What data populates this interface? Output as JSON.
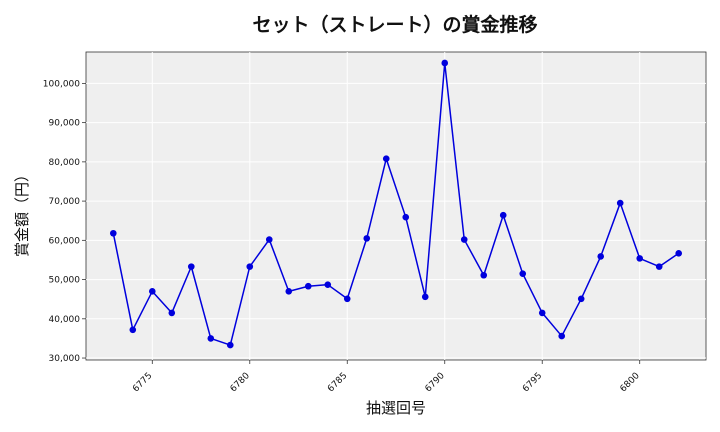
{
  "chart_data": {
    "type": "line",
    "title": "セット（ストレート）の賞金推移",
    "xlabel": "抽選回号",
    "ylabel": "賞金額（円）",
    "xlim": [
      6771.6,
      6803.4
    ],
    "ylim": [
      29500,
      108000
    ],
    "xticks": [
      6775,
      6780,
      6785,
      6790,
      6795,
      6800
    ],
    "xtick_labels": [
      "6775",
      "6780",
      "6785",
      "6790",
      "6795",
      "6800"
    ],
    "yticks": [
      30000,
      40000,
      50000,
      60000,
      70000,
      80000,
      90000,
      100000
    ],
    "ytick_labels": [
      "30,000",
      "40,000",
      "50,000",
      "60,000",
      "70,000",
      "80,000",
      "90,000",
      "100,000"
    ],
    "grid": true,
    "series": [
      {
        "color": "#0000dd",
        "marker": "circle",
        "x": [
          6773,
          6774,
          6775,
          6776,
          6777,
          6778,
          6779,
          6780,
          6781,
          6782,
          6783,
          6784,
          6785,
          6786,
          6787,
          6788,
          6789,
          6790,
          6791,
          6792,
          6793,
          6794,
          6795,
          6796,
          6797,
          6798,
          6799,
          6800,
          6801,
          6802
        ],
        "y": [
          61800,
          37200,
          47000,
          41500,
          53300,
          35000,
          33300,
          53300,
          60200,
          47000,
          48300,
          48700,
          45100,
          60500,
          80800,
          65900,
          45600,
          105200,
          60200,
          51100,
          66400,
          51500,
          41500,
          35600,
          45100,
          55900,
          69500,
          55400,
          53300,
          56700
        ]
      }
    ]
  }
}
